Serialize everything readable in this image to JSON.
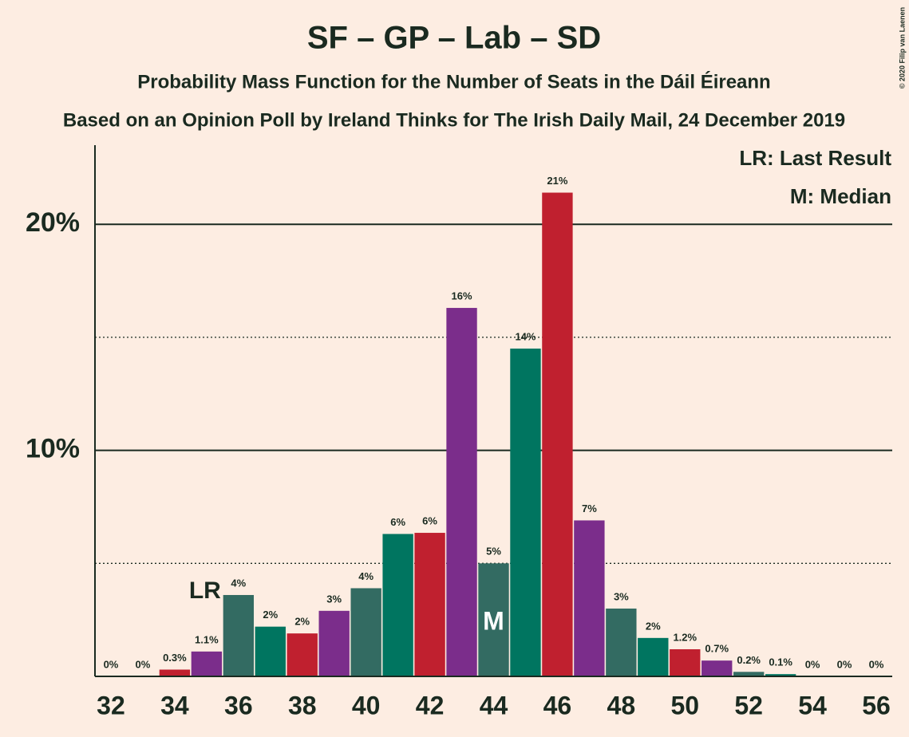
{
  "chart_data": {
    "type": "bar",
    "title": "SF – GP – Lab – SD",
    "subtitle": "Probability Mass Function for the Number of Seats in the Dáil Éireann",
    "subtitle2": "Based on an Opinion Poll by Ireland Thinks for The Irish Daily Mail, 24 December 2019",
    "credit": "© 2020 Filip van Laenen",
    "legend": [
      "LR: Last Result",
      "M: Median"
    ],
    "annotations": [
      {
        "text": "LR",
        "x": 35
      },
      {
        "text": "M",
        "x": 44
      }
    ],
    "x": [
      32,
      33,
      34,
      35,
      36,
      37,
      38,
      39,
      40,
      41,
      42,
      43,
      44,
      45,
      46,
      47,
      48,
      49,
      50,
      51,
      52,
      53,
      54,
      55,
      56
    ],
    "values": [
      0,
      0,
      0.3,
      1.1,
      3.6,
      2.2,
      1.9,
      2.9,
      3.9,
      6.3,
      6.35,
      16.3,
      5,
      14.5,
      21.4,
      6.9,
      3,
      1.7,
      1.2,
      0.7,
      0.2,
      0.1,
      0,
      0,
      0
    ],
    "value_labels": [
      "0%",
      "0%",
      "0.3%",
      "1.1%",
      "4%",
      "2%",
      "2%",
      "3%",
      "4%",
      "6%",
      "6%",
      "16%",
      "5%",
      "14%",
      "21%",
      "7%",
      "3%",
      "2%",
      "1.2%",
      "0.7%",
      "0.2%",
      "0.1%",
      "0%",
      "0%",
      "0%"
    ],
    "colors": [
      "#336b62",
      "#007560",
      "#c0202f",
      "#7b2d8b",
      "#336b62",
      "#007560",
      "#c0202f",
      "#7b2d8b",
      "#336b62",
      "#007560",
      "#c0202f",
      "#7b2d8b",
      "#336b62",
      "#007560",
      "#c0202f",
      "#7b2d8b",
      "#336b62",
      "#007560",
      "#c0202f",
      "#7b2d8b",
      "#336b62",
      "#007560",
      "#c0202f",
      "#7b2d8b",
      "#336b62"
    ],
    "xlim": [
      31.5,
      56.5
    ],
    "xticks": [
      32,
      34,
      36,
      38,
      40,
      42,
      44,
      46,
      48,
      50,
      52,
      54,
      56
    ],
    "ylim": [
      0,
      23.5
    ],
    "yticks": [
      {
        "value": 10,
        "label": "10%"
      },
      {
        "value": 20,
        "label": "20%"
      }
    ],
    "minor_gridlines": [
      5,
      15
    ],
    "grid": true
  }
}
